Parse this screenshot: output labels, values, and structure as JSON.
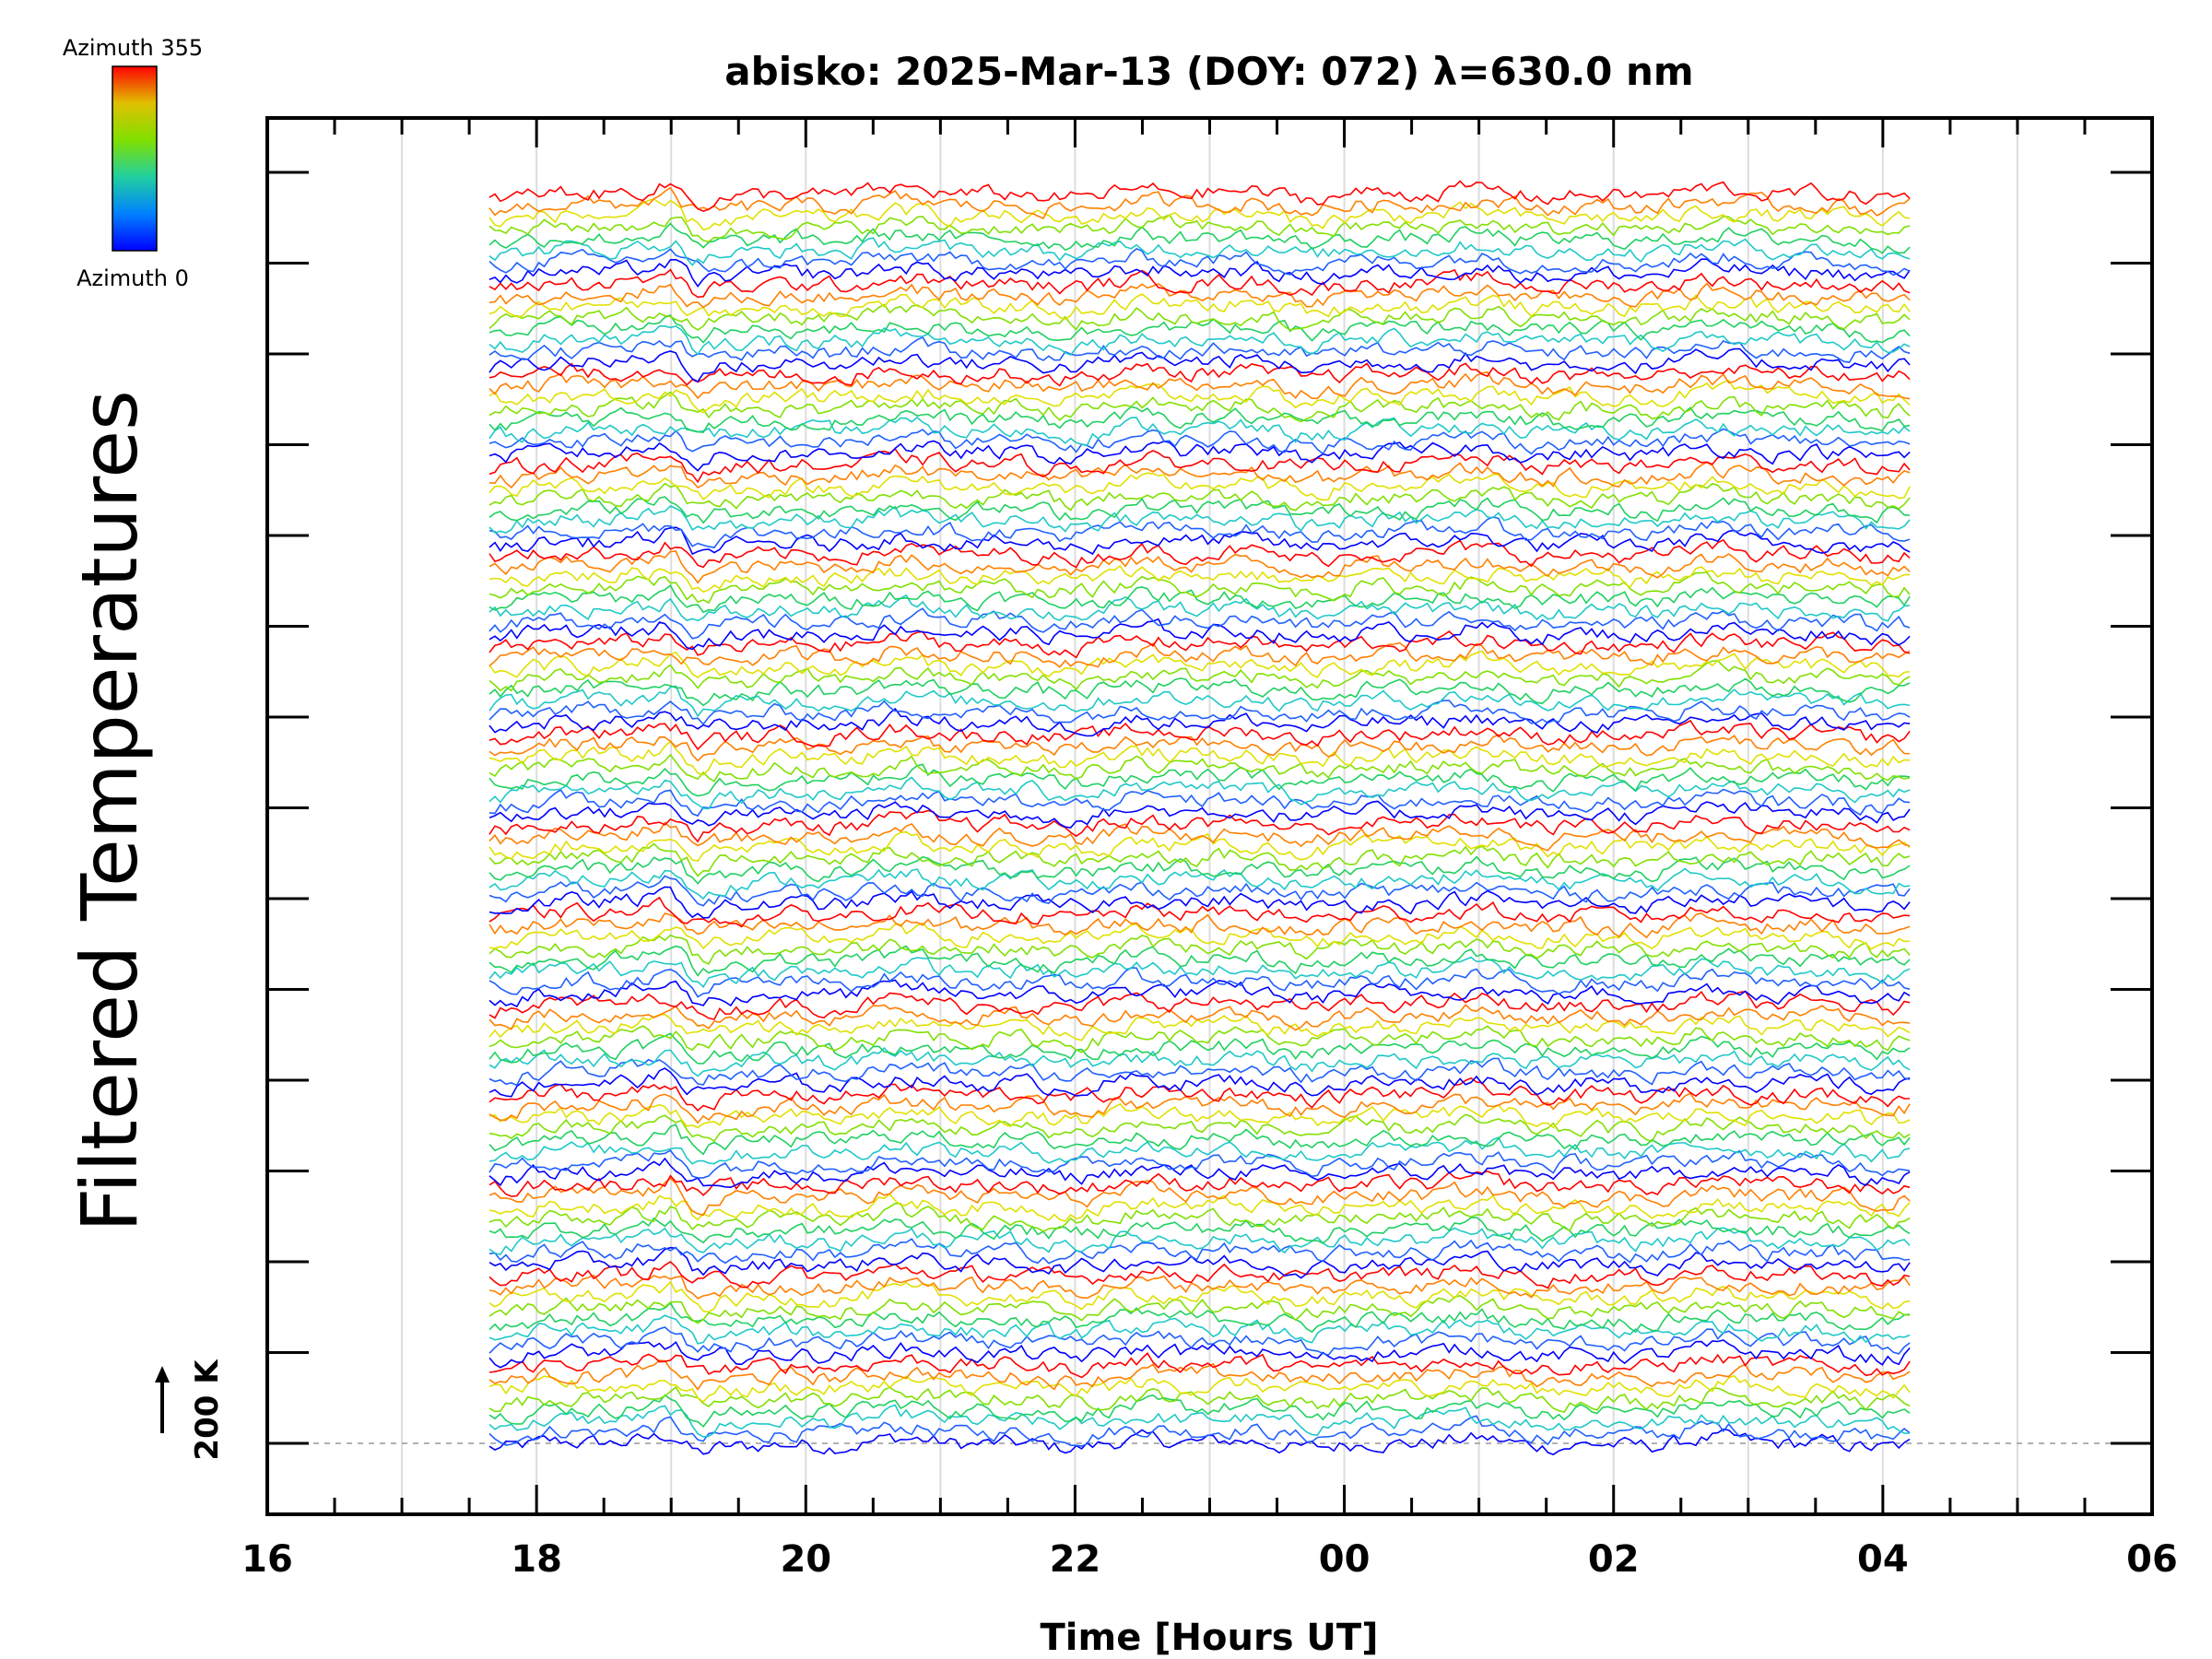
{
  "chart_data": {
    "type": "line",
    "title": "abisko: 2025-Mar-13 (DOY: 072) λ=630.0 nm",
    "xlabel": "Time [Hours UT]",
    "ylabel": "Filtered Temperatures",
    "x_tick_labels": [
      "16",
      "18",
      "20",
      "22",
      "00",
      "02",
      "04",
      "06"
    ],
    "x_range_hours": [
      16,
      30
    ],
    "data_x_range_hours": [
      17.65,
      28.2
    ],
    "colorbar": {
      "top_label": "Azimuth 355",
      "bottom_label": "Azimuth 0",
      "colors": [
        "#ff0000",
        "#ff8000",
        "#e0e000",
        "#80e000",
        "#20d060",
        "#20c8c8",
        "#2060ff",
        "#0000ff"
      ]
    },
    "scale_bar": {
      "label": "200 K"
    },
    "grid": true,
    "series_count": 112,
    "group_size": 8,
    "groups": 14
  }
}
